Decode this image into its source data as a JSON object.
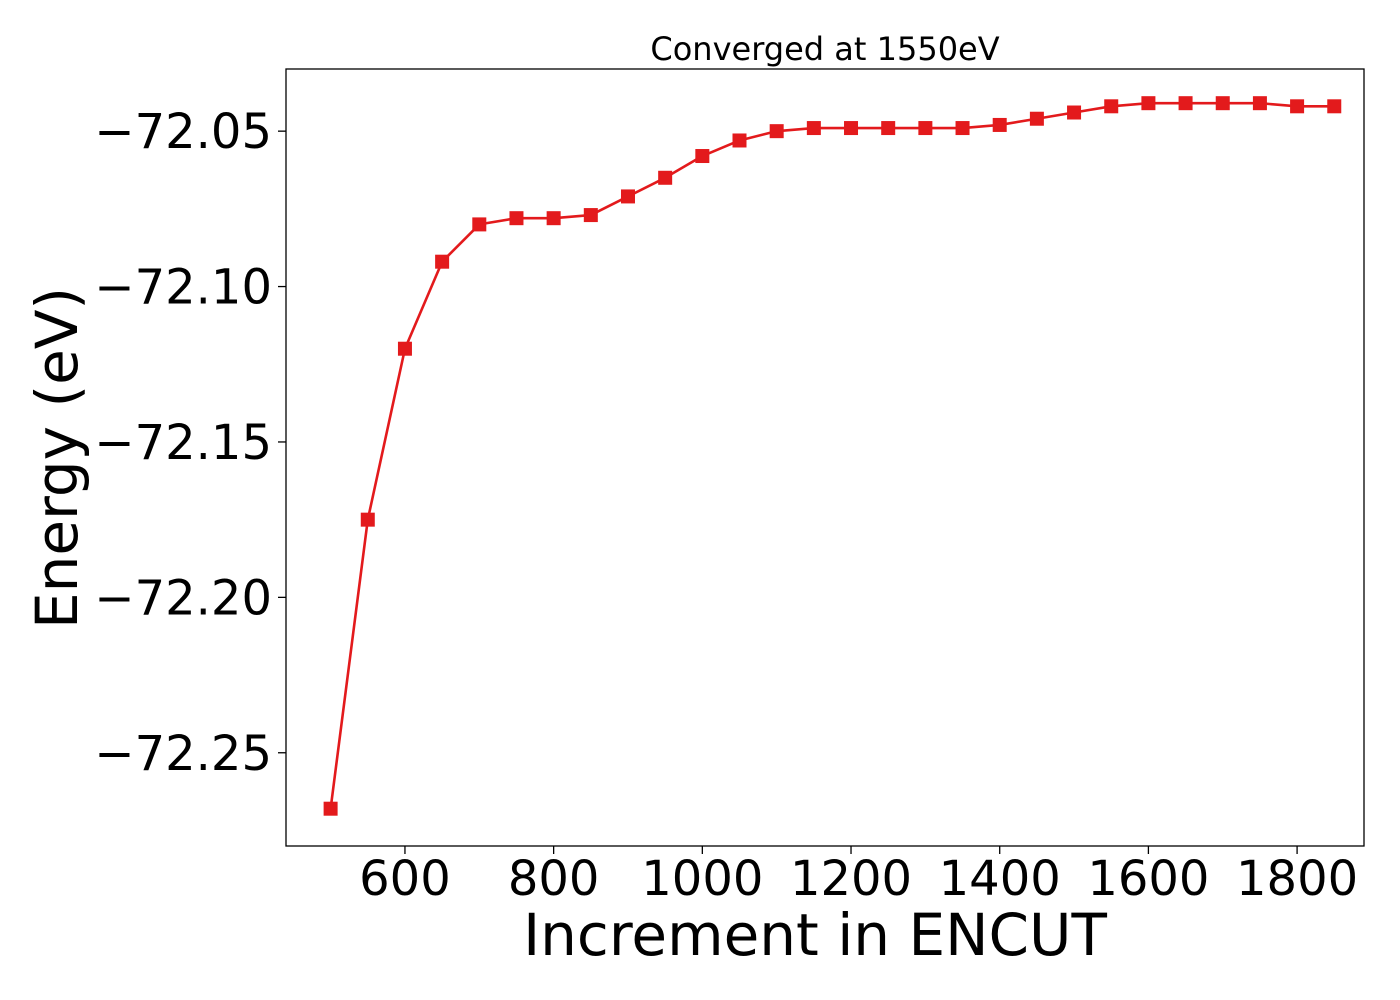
{
  "chart_data": {
    "type": "line",
    "title": "Converged at 1550eV",
    "xlabel": "Increment in ENCUT",
    "ylabel": "Energy (eV)",
    "xlim": [
      440,
      1890
    ],
    "ylim": [
      -72.28,
      -72.03
    ],
    "x_ticks": [
      600,
      800,
      1000,
      1200,
      1400,
      1600,
      1800
    ],
    "x_tick_labels": [
      "600",
      "800",
      "1000",
      "1200",
      "1400",
      "1600",
      "1800"
    ],
    "y_ticks": [
      -72.05,
      -72.1,
      -72.15,
      -72.2,
      -72.25
    ],
    "y_tick_labels": [
      "−72.05",
      "−72.10",
      "−72.15",
      "−72.20",
      "−72.25"
    ],
    "grid": false,
    "marker": "square",
    "color": "#e31a1c",
    "series": [
      {
        "x": [
          500,
          550,
          600,
          650,
          700,
          750,
          800,
          850,
          900,
          950,
          1000,
          1050,
          1100,
          1150,
          1200,
          1250,
          1300,
          1350,
          1400,
          1450,
          1500,
          1550,
          1600,
          1650,
          1700,
          1750,
          1800,
          1850
        ],
        "values": [
          -72.268,
          -72.175,
          -72.12,
          -72.092,
          -72.08,
          -72.078,
          -72.078,
          -72.077,
          -72.071,
          -72.065,
          -72.058,
          -72.053,
          -72.05,
          -72.049,
          -72.049,
          -72.049,
          -72.049,
          -72.049,
          -72.048,
          -72.046,
          -72.044,
          -72.042,
          -72.041,
          -72.041,
          -72.041,
          -72.041,
          -72.042,
          -72.042
        ]
      }
    ]
  }
}
